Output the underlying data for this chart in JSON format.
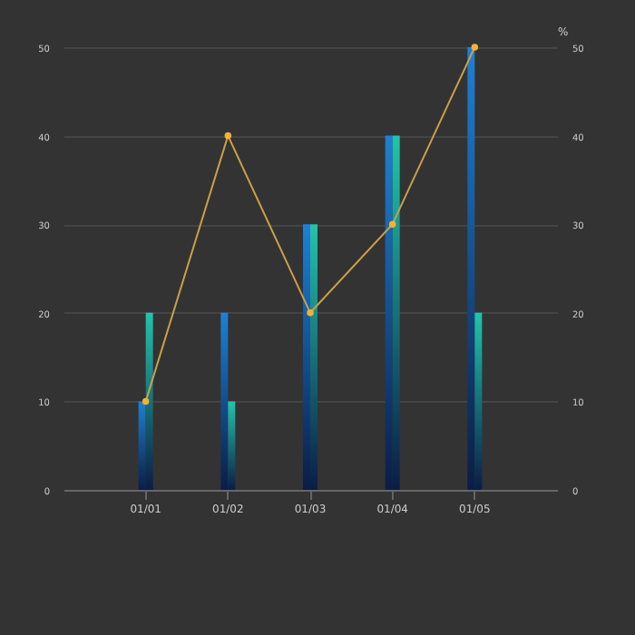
{
  "chart_data": {
    "type": "bar",
    "categories": [
      "01/01",
      "01/02",
      "01/03",
      "01/04",
      "01/05"
    ],
    "series": [
      {
        "color": "#1f80d2",
        "values": [
          10,
          20,
          30,
          40,
          50
        ]
      },
      {
        "color": "#22c4aa",
        "values": [
          20,
          10,
          30,
          40,
          20
        ]
      },
      {
        "type": "line",
        "axis": "y2",
        "color": "#c9a04a",
        "values": [
          10,
          40,
          20,
          30,
          50
        ]
      }
    ],
    "y2label": "%",
    "ylim": [
      0,
      50
    ],
    "yticks": [
      0,
      10,
      20,
      30,
      40,
      50
    ],
    "y2lim": [
      0,
      50
    ],
    "y2ticks": [
      0,
      10,
      20,
      30,
      40,
      50
    ],
    "grid": "y",
    "marker": "circle"
  }
}
